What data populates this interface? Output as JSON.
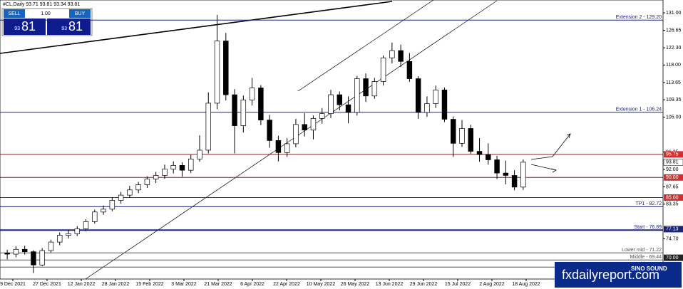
{
  "chart_data": {
    "type": "candlestick",
    "header": "#CL,Daily  93.71 93.81 93.34 93.81",
    "trade_panel": {
      "sell": "SELL",
      "buy": "BUY",
      "lot": "1.00",
      "sell_small": "93",
      "sell_big": "81",
      "buy_small": "93",
      "buy_big": "81"
    },
    "x_labels": [
      "9 Dec 2021",
      "27 Dec 2021",
      "12 Jan 2022",
      "28 Jan 2022",
      "15 Feb 2022",
      "3 Mar 2022",
      "21 Mar 2022",
      "6 Apr 2022",
      "22 Apr 2022",
      "10 May 2022",
      "26 May 2022",
      "13 Jun 2022",
      "29 Jun 2022",
      "15 Jul 2022",
      "2 Aug 2022",
      "18 Aug 2022"
    ],
    "open": [
      71.2,
      70.9,
      72.1,
      71.5,
      68.2,
      71.8,
      73.9,
      75.6,
      76.0,
      77.2,
      79.0,
      81.4,
      82.1,
      84.3,
      85.6,
      86.9,
      88.2,
      89.6,
      90.5,
      92.1,
      93.0,
      91.8,
      94.6,
      96.8,
      108.5,
      124.0,
      110.6,
      102.9,
      109.3,
      112.3,
      104.3,
      99.2,
      96.2,
      98.4,
      103.2,
      101.8,
      104.7,
      105.9,
      110.6,
      108.1,
      106.2,
      114.6,
      110.3,
      113.9,
      119.8,
      121.6,
      118.9,
      114.6,
      106.2,
      108.4,
      111.8,
      104.5,
      98.5,
      102.2,
      96.5,
      95.7,
      94.4,
      91.1,
      90.5,
      87.6
    ],
    "high": [
      72.0,
      72.9,
      73.0,
      71.9,
      72.4,
      74.5,
      76.3,
      77.0,
      77.9,
      79.6,
      82.0,
      83.0,
      85.1,
      86.4,
      87.9,
      88.9,
      90.3,
      91.4,
      93.2,
      94.0,
      93.8,
      95.6,
      100.5,
      111.2,
      130.5,
      126.0,
      112.0,
      110.4,
      114.8,
      113.0,
      105.6,
      100.4,
      99.8,
      104.6,
      106.0,
      105.4,
      107.3,
      111.8,
      111.4,
      110.2,
      115.3,
      115.9,
      114.8,
      120.4,
      123.6,
      123.1,
      121.0,
      115.2,
      110.2,
      112.9,
      112.4,
      105.2,
      104.3,
      103.1,
      99.8,
      98.5,
      95.4,
      94.2,
      91.8,
      94.5
    ],
    "low": [
      69.6,
      70.1,
      70.8,
      66.2,
      67.9,
      71.2,
      73.1,
      74.8,
      75.4,
      76.6,
      78.5,
      80.7,
      81.6,
      83.5,
      84.9,
      86.1,
      87.4,
      88.6,
      89.7,
      91.0,
      90.2,
      91.1,
      93.9,
      96.0,
      107.0,
      109.2,
      96.0,
      101.2,
      107.9,
      103.0,
      97.4,
      94.0,
      95.1,
      97.5,
      100.2,
      99.5,
      103.4,
      104.8,
      106.7,
      103.5,
      105.4,
      108.8,
      109.6,
      112.9,
      118.4,
      117.5,
      113.8,
      104.6,
      105.1,
      107.3,
      103.8,
      95.1,
      97.6,
      95.9,
      93.9,
      93.2,
      89.6,
      88.3,
      86.8,
      86.9
    ],
    "close": [
      70.9,
      72.1,
      71.5,
      68.2,
      71.8,
      73.9,
      75.6,
      76.0,
      77.2,
      79.0,
      81.4,
      82.1,
      84.3,
      85.6,
      86.9,
      88.2,
      89.6,
      90.5,
      92.1,
      93.0,
      91.8,
      94.6,
      96.8,
      108.5,
      124.0,
      110.6,
      102.9,
      109.3,
      112.3,
      104.3,
      99.2,
      96.2,
      98.4,
      103.2,
      101.8,
      104.7,
      105.9,
      110.6,
      108.1,
      106.2,
      114.6,
      110.3,
      113.9,
      119.8,
      121.6,
      118.9,
      114.6,
      106.2,
      108.4,
      111.8,
      104.5,
      98.5,
      102.2,
      96.5,
      95.7,
      94.4,
      91.1,
      90.5,
      87.6,
      93.8
    ],
    "ylim": [
      64.7,
      134.2
    ],
    "yticks": [
      {
        "value": 131,
        "label": "131.00"
      },
      {
        "value": 126.65,
        "label": "126.65"
      },
      {
        "value": 122.3,
        "label": "122.30"
      },
      {
        "value": 118,
        "label": "118.00"
      },
      {
        "value": 113.65,
        "label": "113.65"
      },
      {
        "value": 109.35,
        "label": "109.35"
      },
      {
        "value": 105,
        "label": "105.00"
      },
      {
        "value": 96.35,
        "label": "96.35"
      },
      {
        "value": 92,
        "label": "92.00"
      },
      {
        "value": 87.65,
        "label": "87.65"
      },
      {
        "value": 83.35,
        "label": "83.35"
      },
      {
        "value": 74.7,
        "label": "74.70"
      }
    ],
    "levels": [
      {
        "value": 129.2,
        "label": "Extension 2 - 129.20",
        "color": "#1a237e"
      },
      {
        "value": 106.24,
        "label": "Extension 1 - 106.24",
        "color": "#1a237e"
      },
      {
        "value": 95.75,
        "color": "#8b1a1a"
      },
      {
        "value": 90,
        "color": "#8b1a1a"
      },
      {
        "value": 85,
        "color": "#8b1a1a"
      },
      {
        "value": 82.72,
        "label": "TP1 - 82.72",
        "color": "#1a237e"
      },
      {
        "value": 76.89,
        "label": "Start - 76.89",
        "color": "#1a237e"
      },
      {
        "value": 71.22,
        "label": "Lower mid - 71.22",
        "color": "#555555"
      },
      {
        "value": 69.44,
        "label": "Middle - 69.44",
        "color": "#555555"
      },
      {
        "value": 67.66,
        "label": "Upper mid - 67.66",
        "color": "#555555"
      }
    ],
    "price_tags": [
      {
        "value": 95.75,
        "label": "95.75",
        "color": "#d32f2f"
      },
      {
        "value": 93.81,
        "label": "93.81",
        "color": "#ffffff"
      },
      {
        "value": 90,
        "label": "90.00",
        "color": "#d32f2f"
      },
      {
        "value": 85,
        "label": "85.00",
        "color": "#d32f2f"
      },
      {
        "value": 77.13,
        "label": "77.13",
        "color": "#1a237e"
      },
      {
        "value": 70,
        "label": "70.00",
        "color": "#222222"
      }
    ],
    "watermark": "fxdailyreport.com",
    "watermark_logo": "SINO SOUND"
  }
}
